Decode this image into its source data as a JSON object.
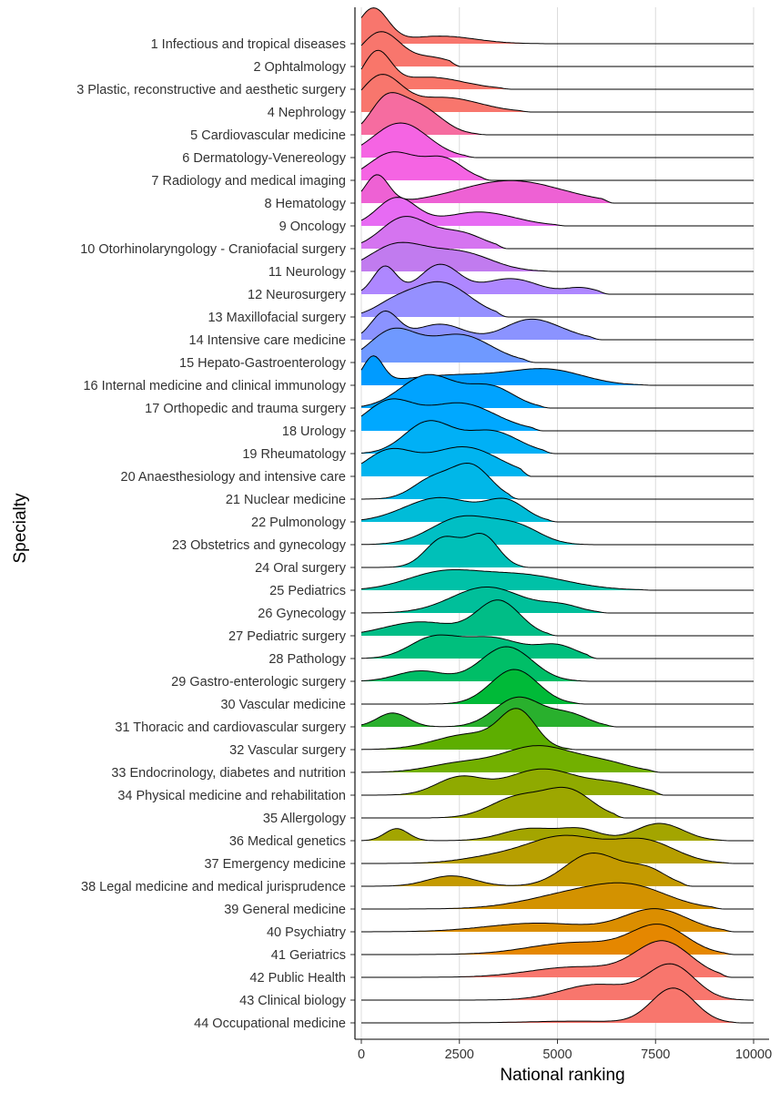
{
  "chart_data": {
    "type": "ridgeline",
    "xlabel": "National ranking",
    "ylabel": "Specialty",
    "xlim": [
      0,
      10000
    ],
    "xticks": [
      "0",
      "2500",
      "5000",
      "7500",
      "10000"
    ],
    "xtick_values": [
      0,
      2500,
      5000,
      7500,
      10000
    ],
    "grid_x": true,
    "legend": "none",
    "series": [
      {
        "name": "1 Infectious and tropical diseases",
        "color": "#F8766D",
        "peaks": [
          [
            300,
            380,
            1.0
          ],
          [
            2000,
            900,
            0.22
          ]
        ],
        "range": [
          0,
          4800
        ]
      },
      {
        "name": "2 Ophtalmology",
        "color": "#F8766D",
        "peaks": [
          [
            500,
            500,
            1.0
          ],
          [
            1800,
            500,
            0.25
          ]
        ],
        "range": [
          0,
          2500
        ]
      },
      {
        "name": "3 Plastic, reconstructive and aesthetic surgery",
        "color": "#F9766A",
        "peaks": [
          [
            400,
            350,
            1.0
          ],
          [
            1700,
            900,
            0.35
          ]
        ],
        "range": [
          0,
          3800
        ]
      },
      {
        "name": "4 Nephrology",
        "color": "#F8766D",
        "peaks": [
          [
            500,
            500,
            1.0
          ],
          [
            2100,
            900,
            0.42
          ]
        ],
        "range": [
          0,
          4300
        ]
      },
      {
        "name": "5 Cardiovascular medicine",
        "color": "#F66CA0",
        "peaks": [
          [
            600,
            400,
            0.8
          ],
          [
            1400,
            600,
            0.85
          ]
        ],
        "range": [
          0,
          3200
        ]
      },
      {
        "name": "6 Dermatology-Venereology",
        "color": "#F564E3",
        "peaks": [
          [
            1000,
            700,
            1.0
          ]
        ],
        "range": [
          0,
          2900
        ]
      },
      {
        "name": "7 Radiology and medical imaging",
        "color": "#F564E3",
        "peaks": [
          [
            800,
            600,
            0.8
          ],
          [
            2100,
            500,
            0.6
          ]
        ],
        "range": [
          0,
          3300
        ]
      },
      {
        "name": "8 Hematology",
        "color": "#EE61D4",
        "peaks": [
          [
            400,
            300,
            0.8
          ],
          [
            3800,
            1300,
            0.65
          ]
        ],
        "range": [
          0,
          6400
        ]
      },
      {
        "name": "9 Oncology",
        "color": "#E76BF3",
        "peaks": [
          [
            900,
            500,
            0.8
          ],
          [
            3000,
            900,
            0.4
          ]
        ],
        "range": [
          0,
          5200
        ]
      },
      {
        "name": "10 Otorhinolaryngology - Craniofacial surgery",
        "color": "#D574F0",
        "peaks": [
          [
            1100,
            600,
            0.9
          ],
          [
            2500,
            600,
            0.45
          ]
        ],
        "range": [
          0,
          3700
        ]
      },
      {
        "name": "11 Neurology",
        "color": "#C17BEF",
        "peaks": [
          [
            900,
            700,
            0.75
          ],
          [
            2500,
            800,
            0.55
          ]
        ],
        "range": [
          0,
          4900
        ]
      },
      {
        "name": "12 Neurosurgery",
        "color": "#AE87FF",
        "peaks": [
          [
            600,
            300,
            0.8
          ],
          [
            2000,
            500,
            0.85
          ],
          [
            3800,
            700,
            0.45
          ],
          [
            5600,
            400,
            0.18
          ]
        ],
        "range": [
          0,
          6300
        ]
      },
      {
        "name": "13 Maxillofacial surgery",
        "color": "#9590FF",
        "peaks": [
          [
            2000,
            750,
            1.0
          ],
          [
            800,
            500,
            0.3
          ]
        ],
        "range": [
          0,
          3700
        ]
      },
      {
        "name": "14 Intensive care medicine",
        "color": "#8B93FF",
        "peaks": [
          [
            600,
            350,
            0.8
          ],
          [
            2000,
            600,
            0.45
          ],
          [
            4200,
            600,
            0.5
          ],
          [
            5000,
            600,
            0.2
          ]
        ],
        "range": [
          0,
          6100
        ]
      },
      {
        "name": "15 Hepato-Gastroenterology",
        "color": "#6F99FF",
        "peaks": [
          [
            800,
            600,
            0.9
          ],
          [
            2500,
            800,
            0.8
          ]
        ],
        "range": [
          0,
          4400
        ]
      },
      {
        "name": "16 Internal medicine and clinical immunology",
        "color": "#009BFF",
        "peaks": [
          [
            300,
            250,
            0.75
          ],
          [
            2500,
            1500,
            0.3
          ],
          [
            4800,
            900,
            0.38
          ]
        ],
        "range": [
          0,
          7400
        ]
      },
      {
        "name": "17 Orthopedic and trauma surgery",
        "color": "#00A3FF",
        "peaks": [
          [
            1700,
            700,
            0.95
          ],
          [
            3300,
            600,
            0.6
          ]
        ],
        "range": [
          0,
          4800
        ]
      },
      {
        "name": "18 Urology",
        "color": "#00A8FF",
        "peaks": [
          [
            700,
            600,
            0.8
          ],
          [
            2500,
            900,
            0.8
          ]
        ],
        "range": [
          0,
          4600
        ]
      },
      {
        "name": "19 Rheumatology",
        "color": "#00B0F6",
        "peaks": [
          [
            1700,
            600,
            0.9
          ],
          [
            3300,
            700,
            0.65
          ]
        ],
        "range": [
          0,
          4900
        ]
      },
      {
        "name": "20 Anaesthesiology and intensive care",
        "color": "#00B4EF",
        "peaks": [
          [
            700,
            600,
            0.7
          ],
          [
            2600,
            900,
            0.85
          ]
        ],
        "range": [
          0,
          4300
        ]
      },
      {
        "name": "21 Nuclear medicine",
        "color": "#00B7E8",
        "peaks": [
          [
            2800,
            500,
            0.95
          ],
          [
            1800,
            500,
            0.55
          ]
        ],
        "range": [
          0,
          4000
        ]
      },
      {
        "name": "22 Pulmonology",
        "color": "#00BCD8",
        "peaks": [
          [
            2000,
            900,
            0.7
          ],
          [
            3700,
            500,
            0.55
          ]
        ],
        "range": [
          0,
          5000
        ]
      },
      {
        "name": "23 Obstetrics and gynecology",
        "color": "#00BFC4",
        "peaks": [
          [
            2600,
            800,
            0.8
          ],
          [
            4000,
            600,
            0.45
          ]
        ],
        "range": [
          0,
          6000
        ]
      },
      {
        "name": "24 Oral surgery",
        "color": "#00C0B8",
        "peaks": [
          [
            2100,
            450,
            0.85
          ],
          [
            3100,
            400,
            0.9
          ]
        ],
        "range": [
          0,
          4300
        ]
      },
      {
        "name": "25 Pediatrics",
        "color": "#00C1A7",
        "peaks": [
          [
            2000,
            900,
            0.45
          ],
          [
            4000,
            1200,
            0.45
          ]
        ],
        "range": [
          0,
          7400
        ]
      },
      {
        "name": "26 Gynecology",
        "color": "#00BF9A",
        "peaks": [
          [
            3200,
            900,
            0.75
          ],
          [
            5100,
            500,
            0.2
          ]
        ],
        "range": [
          0,
          6300
        ]
      },
      {
        "name": "27 Pediatric surgery",
        "color": "#00BD86",
        "peaks": [
          [
            3500,
            550,
            1.0
          ],
          [
            1500,
            900,
            0.4
          ]
        ],
        "range": [
          0,
          5000
        ]
      },
      {
        "name": "28 Pathology",
        "color": "#00BF7D",
        "peaks": [
          [
            1800,
            600,
            0.55
          ],
          [
            3300,
            800,
            0.6
          ],
          [
            5000,
            500,
            0.35
          ]
        ],
        "range": [
          0,
          6000
        ]
      },
      {
        "name": "29 Gastro-enterologic surgery",
        "color": "#00BE67",
        "peaks": [
          [
            3700,
            650,
            1.0
          ],
          [
            1500,
            600,
            0.3
          ]
        ],
        "range": [
          0,
          5800
        ]
      },
      {
        "name": "30 Vascular medicine",
        "color": "#00BA38",
        "peaks": [
          [
            3900,
            600,
            1.0
          ]
        ],
        "range": [
          0,
          5700
        ]
      },
      {
        "name": "31 Thoracic and cardiovascular surgery",
        "color": "#29B02D",
        "peaks": [
          [
            800,
            400,
            0.4
          ],
          [
            4000,
            600,
            0.85
          ],
          [
            5300,
            500,
            0.35
          ]
        ],
        "range": [
          0,
          6500
        ]
      },
      {
        "name": "32 Vascular surgery",
        "color": "#5DAE00",
        "peaks": [
          [
            4000,
            450,
            1.0
          ],
          [
            2800,
            900,
            0.45
          ]
        ],
        "range": [
          0,
          5500
        ]
      },
      {
        "name": "33 Endocrinology, diabetes and nutrition",
        "color": "#72B000",
        "peaks": [
          [
            4500,
            900,
            0.75
          ],
          [
            2500,
            800,
            0.25
          ],
          [
            6200,
            700,
            0.25
          ]
        ],
        "range": [
          0,
          7600
        ]
      },
      {
        "name": "34 Physical medicine and rehabilitation",
        "color": "#8FAA00",
        "peaks": [
          [
            2500,
            600,
            0.5
          ],
          [
            4600,
            900,
            0.75
          ],
          [
            6500,
            700,
            0.3
          ]
        ],
        "range": [
          0,
          7700
        ]
      },
      {
        "name": "35 Allergology",
        "color": "#9DA700",
        "peaks": [
          [
            4000,
            700,
            0.6
          ],
          [
            5300,
            600,
            0.75
          ]
        ],
        "range": [
          1800,
          6700
        ]
      },
      {
        "name": "36 Medical genetics",
        "color": "#A3A500",
        "peaks": [
          [
            900,
            300,
            0.35
          ],
          [
            4300,
            700,
            0.35
          ],
          [
            5600,
            500,
            0.3
          ],
          [
            7600,
            600,
            0.5
          ]
        ],
        "range": [
          0,
          9400
        ]
      },
      {
        "name": "37 Emergency medicine",
        "color": "#B79F00",
        "peaks": [
          [
            5200,
            900,
            0.75
          ],
          [
            7200,
            800,
            0.65
          ],
          [
            3500,
            900,
            0.2
          ]
        ],
        "range": [
          0,
          9500
        ]
      },
      {
        "name": "38 Legal medicine and medical jurisprudence",
        "color": "#C49A00",
        "peaks": [
          [
            2300,
            600,
            0.3
          ],
          [
            5900,
            700,
            0.95
          ],
          [
            7300,
            500,
            0.45
          ]
        ],
        "range": [
          0,
          8400
        ]
      },
      {
        "name": "39 General medicine",
        "color": "#D39200",
        "peaks": [
          [
            5700,
            1300,
            0.5
          ],
          [
            7000,
            900,
            0.4
          ]
        ],
        "range": [
          0,
          9200
        ]
      },
      {
        "name": "40 Psychiatry",
        "color": "#DB8E00",
        "peaks": [
          [
            4500,
            1300,
            0.25
          ],
          [
            7500,
            800,
            0.65
          ]
        ],
        "range": [
          0,
          9500
        ]
      },
      {
        "name": "41 Geriatrics",
        "color": "#E58700",
        "peaks": [
          [
            5500,
            1200,
            0.35
          ],
          [
            7600,
            700,
            0.8
          ]
        ],
        "range": [
          0,
          9500
        ]
      },
      {
        "name": "42 Public Health",
        "color": "#F8766D",
        "peaks": [
          [
            7700,
            700,
            1.0
          ],
          [
            5500,
            1200,
            0.3
          ]
        ],
        "range": [
          0,
          9400
        ]
      },
      {
        "name": "43 Clinical biology",
        "color": "#F8766D",
        "peaks": [
          [
            7900,
            600,
            1.0
          ],
          [
            6000,
            900,
            0.45
          ]
        ],
        "range": [
          0,
          9900
        ]
      },
      {
        "name": "44 Occupational medicine",
        "color": "#F8766D",
        "peaks": [
          [
            7950,
            550,
            1.0
          ],
          [
            5500,
            1200,
            0.05
          ]
        ],
        "range": [
          0,
          9700
        ]
      }
    ]
  }
}
